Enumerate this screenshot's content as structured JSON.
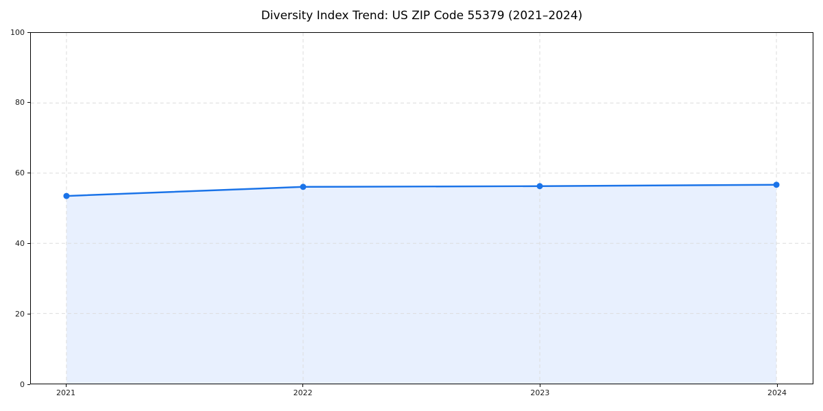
{
  "chart_data": {
    "type": "area",
    "title": "Diversity Index Trend: US ZIP Code 55379 (2021–2024)",
    "categories": [
      "2021",
      "2022",
      "2023",
      "2024"
    ],
    "values": [
      53.5,
      56.1,
      56.3,
      56.7
    ],
    "xlabel": "",
    "ylabel": "",
    "ylim": [
      0,
      100
    ],
    "yticks": [
      0,
      20,
      40,
      60,
      80,
      100
    ],
    "grid": true,
    "grid_style": "dashed",
    "legend": false,
    "marker": "circle",
    "fill_to_zero": true,
    "colors": {
      "line": "#1a73e8",
      "fill": "#e8f0fe",
      "grid": "#dcdcdc",
      "axis": "#000000",
      "tick_text": "#1a1a1a",
      "background": "#ffffff"
    }
  }
}
